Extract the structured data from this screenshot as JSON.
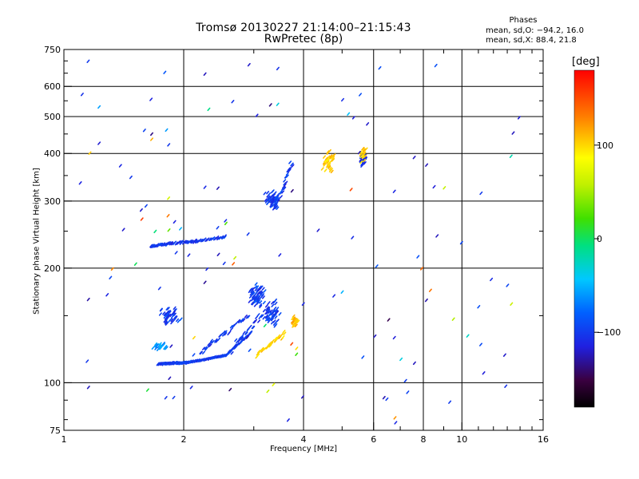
{
  "chart_data": {
    "type": "scatter",
    "title": "Tromsø 20130227 21:14:00–21:15:43",
    "subtitle": "RwPretec (8p)",
    "xlabel": "Frequency [MHz]",
    "ylabel": "Stationary phase Virtual Height [km]",
    "x_scale": "log",
    "y_scale": "log",
    "xlim": [
      1,
      16
    ],
    "ylim": [
      75,
      750
    ],
    "x_ticks": [
      1,
      2,
      4,
      6,
      8,
      10,
      16
    ],
    "x_tick_labels": [
      "1",
      "2",
      "4",
      "6",
      "8",
      "10",
      "16"
    ],
    "x_minor_ticks": [
      3,
      5,
      7,
      9,
      11,
      12,
      13,
      14,
      15
    ],
    "y_ticks": [
      75,
      100,
      200,
      300,
      400,
      500,
      600,
      750
    ],
    "y_tick_labels": [
      "75",
      "100",
      "200",
      "300",
      "400",
      "500",
      "600",
      "750"
    ],
    "grid": true,
    "phases": {
      "heading": "Phases",
      "o_line": "mean, sd,O: −94.2, 16.0",
      "x_line": "mean, sd,X:  88.4, 21.8"
    },
    "colorbar": {
      "unit": "[deg]",
      "range": [
        -180,
        180
      ],
      "ticks": [
        100,
        0,
        -100
      ],
      "tick_labels": [
        "100",
        "0",
        "−100"
      ]
    },
    "traces": [
      {
        "kind": "sweep",
        "from": [
          1.72,
          112
        ],
        "to": [
          2.05,
          113
        ],
        "phase": -100,
        "count": 60,
        "sd": 0.004
      },
      {
        "kind": "sweep",
        "from": [
          2.05,
          113
        ],
        "to": [
          2.55,
          118
        ],
        "phase": -100,
        "count": 50,
        "sd": 0.005
      },
      {
        "kind": "sweep",
        "from": [
          2.55,
          118
        ],
        "to": [
          2.95,
          135
        ],
        "phase": -100,
        "count": 40,
        "sd": 0.008
      },
      {
        "kind": "sweep",
        "from": [
          1.65,
          228
        ],
        "to": [
          1.85,
          232
        ],
        "phase": -105,
        "count": 25,
        "sd": 0.008
      },
      {
        "kind": "sweep",
        "from": [
          1.85,
          232
        ],
        "to": [
          2.15,
          235
        ],
        "phase": -105,
        "count": 28,
        "sd": 0.008
      },
      {
        "kind": "sweep",
        "from": [
          2.15,
          235
        ],
        "to": [
          2.55,
          242
        ],
        "phase": -100,
        "count": 25,
        "sd": 0.008
      },
      {
        "kind": "sweep",
        "from": [
          2.2,
          120
        ],
        "to": [
          2.9,
          150
        ],
        "phase": -100,
        "count": 40,
        "sd": 0.02
      },
      {
        "kind": "sweep",
        "from": [
          2.6,
          120
        ],
        "to": [
          3.4,
          165
        ],
        "phase": -100,
        "count": 45,
        "sd": 0.03
      },
      {
        "kind": "cluster",
        "center": [
          3.05,
          170
        ],
        "spread": [
          0.05,
          0.1
        ],
        "phase": -100,
        "count": 70
      },
      {
        "kind": "cluster",
        "center": [
          3.35,
          150
        ],
        "spread": [
          0.05,
          0.07
        ],
        "phase": -100,
        "count": 45
      },
      {
        "kind": "cluster",
        "center": [
          3.35,
          300
        ],
        "spread": [
          0.05,
          0.06
        ],
        "phase": -100,
        "count": 70
      },
      {
        "kind": "sweep",
        "from": [
          3.5,
          310
        ],
        "to": [
          3.75,
          380
        ],
        "phase": -100,
        "count": 25,
        "sd": 0.02
      },
      {
        "kind": "sweep",
        "from": [
          3.05,
          118
        ],
        "to": [
          3.6,
          135
        ],
        "phase": 100,
        "count": 30,
        "sd": 0.02
      },
      {
        "kind": "cluster",
        "center": [
          3.8,
          145
        ],
        "spread": [
          0.02,
          0.04
        ],
        "phase": 110,
        "count": 25
      },
      {
        "kind": "cluster",
        "center": [
          4.65,
          380
        ],
        "spread": [
          0.04,
          0.07
        ],
        "phase": 105,
        "count": 40
      },
      {
        "kind": "cluster",
        "center": [
          5.65,
          385
        ],
        "spread": [
          0.02,
          0.04
        ],
        "phase": -110,
        "count": 40
      },
      {
        "kind": "cluster",
        "center": [
          5.65,
          400
        ],
        "spread": [
          0.02,
          0.06
        ],
        "phase": 100,
        "count": 20
      },
      {
        "kind": "cluster",
        "center": [
          1.85,
          150
        ],
        "spread": [
          0.07,
          0.07
        ],
        "phase": -100,
        "count": 45
      },
      {
        "kind": "cluster",
        "center": [
          1.75,
          125
        ],
        "spread": [
          0.05,
          0.03
        ],
        "phase": -60,
        "count": 25
      },
      {
        "kind": "scatter",
        "xlim": [
          1.05,
          15
        ],
        "ylim": [
          78,
          700
        ],
        "phase_range": [
          -150,
          160
        ],
        "count": 130
      }
    ],
    "seed": 20130227
  }
}
